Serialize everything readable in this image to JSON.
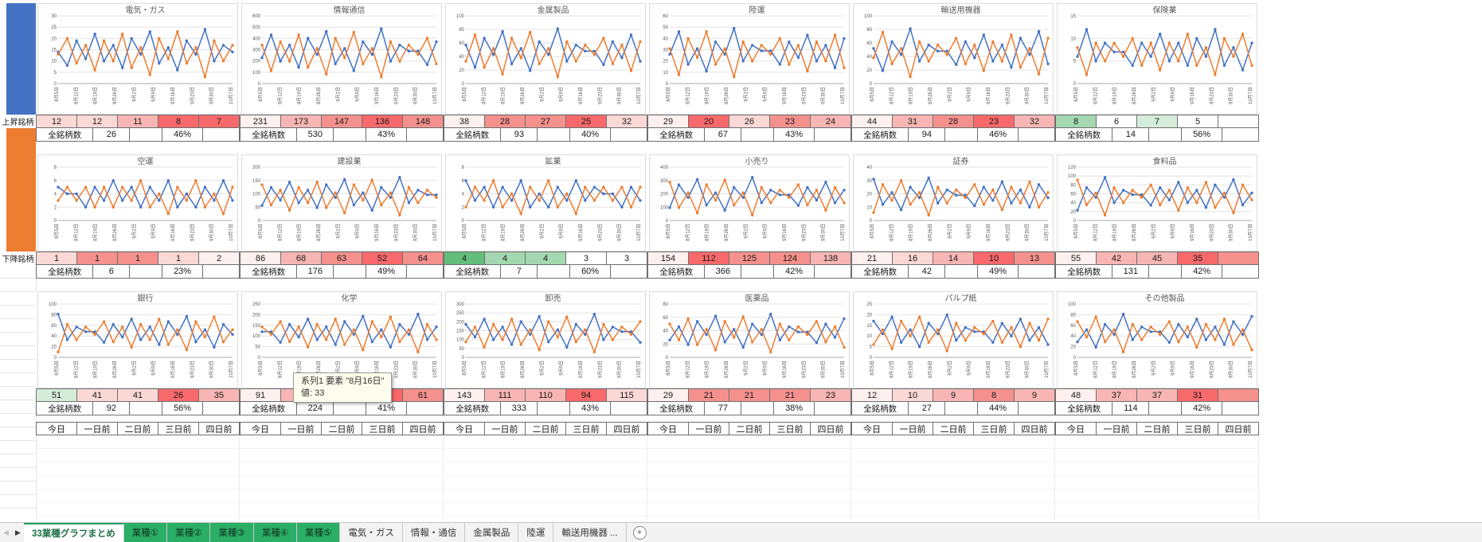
{
  "sidebar": {
    "rising_label": "上昇銘柄",
    "falling_label": "下降銘柄",
    "rising_color": "#4472C4",
    "falling_color": "#ED7D31"
  },
  "x_labels": [
    "8月5日",
    "8月12日",
    "8月19日",
    "8月26日",
    "9月2日",
    "9月9日",
    "9月16日",
    "9月23日",
    "9月30日",
    "10月7日"
  ],
  "time_labels": [
    "今日",
    "一日前",
    "二日前",
    "三日前",
    "四日前"
  ],
  "totals_label": "全銘柄数",
  "series_colors": {
    "s1": "#4472C4",
    "s2": "#ED7D31"
  },
  "tooltip": {
    "line1": "系列1 要素 \"8月16日\"",
    "line2": "値: 33"
  },
  "tabs": {
    "nav_left": "◀",
    "nav_right": "▶",
    "add_label": "+",
    "items": [
      {
        "label": "33業種グラフまとめ",
        "type": "active"
      },
      {
        "label": "業種①",
        "type": "green"
      },
      {
        "label": "業種②",
        "type": "green"
      },
      {
        "label": "業種③",
        "type": "green"
      },
      {
        "label": "業種④",
        "type": "green"
      },
      {
        "label": "業種⑤",
        "type": "green"
      },
      {
        "label": "電気・ガス",
        "type": "plain"
      },
      {
        "label": "情報・通信",
        "type": "plain"
      },
      {
        "label": "金属製品",
        "type": "plain"
      },
      {
        "label": "陸運",
        "type": "plain"
      },
      {
        "label": "輸送用機器 ...",
        "type": "plain"
      }
    ]
  },
  "charts": [
    {
      "title": "電気・ガス",
      "ymax": 30,
      "ystep": 5,
      "total": "26",
      "pct": "46%",
      "cells": [
        {
          "v": "12",
          "bg": "#FAD8D6"
        },
        {
          "v": "12",
          "bg": "#FAD8D6"
        },
        {
          "v": "11",
          "bg": "#F7B6B3"
        },
        {
          "v": "8",
          "bg": "#F8696B"
        },
        {
          "v": "7",
          "bg": "#F8696B"
        }
      ],
      "blue": [
        14,
        8,
        19,
        11,
        22,
        10,
        17,
        7,
        20,
        13,
        23,
        9,
        16,
        6,
        19,
        13,
        24,
        10,
        17,
        14
      ],
      "orange": [
        13,
        20,
        9,
        17,
        6,
        19,
        10,
        22,
        7,
        16,
        4,
        20,
        11,
        23,
        9,
        16,
        3,
        19,
        10,
        17
      ]
    },
    {
      "title": "情報通信",
      "ymax": 600,
      "ystep": 100,
      "total": "530",
      "pct": "43%",
      "cells": [
        {
          "v": "231",
          "bg": "#FDF0EF"
        },
        {
          "v": "173",
          "bg": "#F7B6B3"
        },
        {
          "v": "147",
          "bg": "#F4918D"
        },
        {
          "v": "136",
          "bg": "#F8696B"
        },
        {
          "v": "148",
          "bg": "#F4918D"
        }
      ],
      "blue": [
        228,
        432,
        198,
        342,
        144,
        402,
        258,
        462,
        174,
        312,
        114,
        372,
        258,
        486,
        198,
        342,
        288,
        288,
        168,
        372
      ],
      "orange": [
        342,
        114,
        372,
        198,
        432,
        144,
        312,
        84,
        402,
        228,
        456,
        174,
        312,
        60,
        372,
        198,
        342,
        258,
        402,
        174
      ]
    },
    {
      "title": "金属製品",
      "ymax": 100,
      "ystep": 20,
      "total": "93",
      "pct": "40%",
      "cells": [
        {
          "v": "38",
          "bg": "#FDF0EF"
        },
        {
          "v": "28",
          "bg": "#F4918D"
        },
        {
          "v": "27",
          "bg": "#F4918D"
        },
        {
          "v": "25",
          "bg": "#F8696B"
        },
        {
          "v": "32",
          "bg": "#FAD8D6"
        }
      ],
      "blue": [
        57,
        24,
        67,
        43,
        77,
        29,
        52,
        19,
        62,
        43,
        81,
        33,
        57,
        48,
        48,
        28,
        62,
        38,
        72,
        33
      ],
      "orange": [
        33,
        72,
        24,
        52,
        14,
        67,
        38,
        76,
        29,
        52,
        10,
        62,
        33,
        57,
        43,
        67,
        29,
        57,
        19,
        62
      ]
    },
    {
      "title": "陸運",
      "ymax": 60,
      "ystep": 10,
      "total": "67",
      "pct": "43%",
      "cells": [
        {
          "v": "29",
          "bg": "#FDF0EF"
        },
        {
          "v": "20",
          "bg": "#F8696B"
        },
        {
          "v": "26",
          "bg": "#FAD8D6"
        },
        {
          "v": "23",
          "bg": "#F4918D"
        },
        {
          "v": "24",
          "bg": "#F7B6B3"
        }
      ],
      "blue": [
        26,
        46,
        17,
        31,
        11,
        37,
        26,
        49,
        20,
        34,
        29,
        29,
        17,
        37,
        23,
        43,
        20,
        34,
        14,
        40
      ],
      "orange": [
        31,
        8,
        40,
        23,
        46,
        17,
        31,
        6,
        37,
        20,
        34,
        26,
        40,
        17,
        34,
        11,
        37,
        20,
        43,
        14
      ]
    },
    {
      "title": "輸送用機器",
      "ymax": 100,
      "ystep": 20,
      "total": "94",
      "pct": "46%",
      "cells": [
        {
          "v": "44",
          "bg": "#FDF0EF"
        },
        {
          "v": "31",
          "bg": "#F7B6B3"
        },
        {
          "v": "28",
          "bg": "#F4918D"
        },
        {
          "v": "23",
          "bg": "#F8696B"
        },
        {
          "v": "32",
          "bg": "#F7B6B3"
        }
      ],
      "blue": [
        52,
        19,
        62,
        43,
        81,
        33,
        57,
        48,
        48,
        28,
        62,
        38,
        72,
        33,
        57,
        24,
        67,
        43,
        77,
        29
      ],
      "orange": [
        38,
        76,
        29,
        52,
        10,
        62,
        33,
        57,
        43,
        67,
        29,
        57,
        19,
        62,
        33,
        72,
        24,
        52,
        14,
        67
      ]
    },
    {
      "title": "保険業",
      "ymax": 15,
      "ystep": 5,
      "total": "14",
      "pct": "56%",
      "cells": [
        {
          "v": "8",
          "bg": "#A4D8B0"
        },
        {
          "v": "6",
          "bg": "#FFFFFF"
        },
        {
          "v": "7",
          "bg": "#D5ECDB"
        },
        {
          "v": "5",
          "bg": "#FFFFFF"
        },
        {
          "v": "",
          "bg": "#FFFFFF"
        }
      ],
      "blue": [
        6,
        12,
        5,
        9,
        7,
        7,
        4,
        9,
        6,
        11,
        5,
        9,
        4,
        10,
        6,
        12,
        4,
        8,
        3,
        9
      ],
      "orange": [
        8,
        2,
        9,
        5,
        9,
        6,
        10,
        4,
        9,
        3,
        9,
        5,
        11,
        4,
        8,
        2,
        10,
        6,
        11,
        4
      ]
    },
    {
      "title": "空運",
      "ymax": 8,
      "ystep": 2,
      "total": "6",
      "pct": "23%",
      "cells": [
        {
          "v": "1",
          "bg": "#FAD8D6"
        },
        {
          "v": "1",
          "bg": "#F4918D"
        },
        {
          "v": "1",
          "bg": "#F4918D"
        },
        {
          "v": "1",
          "bg": "#FAD8D6"
        },
        {
          "v": "2",
          "bg": "#FDF0EF"
        }
      ],
      "blue": [
        5,
        4,
        4,
        2,
        5,
        3,
        6,
        3,
        5,
        2,
        5,
        3,
        6,
        2,
        4,
        2,
        5,
        3,
        6,
        3
      ],
      "orange": [
        3,
        5,
        3,
        5,
        2,
        5,
        2,
        5,
        3,
        6,
        2,
        4,
        1,
        5,
        3,
        6,
        2,
        4,
        1,
        5
      ]
    },
    {
      "title": "建設業",
      "ymax": 200,
      "ystep": 50,
      "total": "176",
      "pct": "49%",
      "cells": [
        {
          "v": "86",
          "bg": "#FDF0EF"
        },
        {
          "v": "68",
          "bg": "#F7B6B3"
        },
        {
          "v": "63",
          "bg": "#F4918D"
        },
        {
          "v": "52",
          "bg": "#F8696B"
        },
        {
          "v": "64",
          "bg": "#F4918D"
        }
      ],
      "blue": [
        56,
        124,
        76,
        144,
        66,
        114,
        48,
        134,
        86,
        154,
        58,
        104,
        38,
        124,
        86,
        162,
        66,
        114,
        96,
        96
      ],
      "orange": [
        134,
        58,
        114,
        38,
        124,
        66,
        144,
        48,
        104,
        28,
        134,
        76,
        152,
        58,
        104,
        20,
        124,
        66,
        114,
        86
      ]
    },
    {
      "title": "鉱業",
      "ymax": 8,
      "ystep": 2,
      "total": "7",
      "pct": "60%",
      "cells": [
        {
          "v": "4",
          "bg": "#63BE7B"
        },
        {
          "v": "4",
          "bg": "#A4D8B0"
        },
        {
          "v": "4",
          "bg": "#A4D8B0"
        },
        {
          "v": "3",
          "bg": "#FFFFFF"
        },
        {
          "v": "3",
          "bg": "#FFFFFF"
        }
      ],
      "blue": [
        6,
        3,
        5,
        2,
        5,
        3,
        6,
        2,
        4,
        2,
        5,
        3,
        6,
        3,
        5,
        4,
        4,
        2,
        5,
        3
      ],
      "orange": [
        2,
        5,
        3,
        6,
        2,
        4,
        1,
        5,
        3,
        6,
        2,
        4,
        1,
        5,
        3,
        5,
        3,
        5,
        2,
        5
      ]
    },
    {
      "title": "小売り",
      "ymax": 400,
      "ystep": 100,
      "total": "366",
      "pct": "42%",
      "cells": [
        {
          "v": "154",
          "bg": "#FDF0EF"
        },
        {
          "v": "112",
          "bg": "#F8696B"
        },
        {
          "v": "125",
          "bg": "#F4918D"
        },
        {
          "v": "124",
          "bg": "#F4918D"
        },
        {
          "v": "138",
          "bg": "#F7B6B3"
        }
      ],
      "blue": [
        96,
        268,
        172,
        308,
        116,
        208,
        76,
        248,
        172,
        324,
        132,
        228,
        192,
        192,
        112,
        248,
        152,
        288,
        132,
        228
      ],
      "orange": [
        288,
        96,
        208,
        56,
        268,
        152,
        304,
        116,
        208,
        40,
        248,
        132,
        228,
        172,
        268,
        116,
        228,
        76,
        248,
        132
      ]
    },
    {
      "title": "証券",
      "ymax": 40,
      "ystep": 10,
      "total": "42",
      "pct": "49%",
      "cells": [
        {
          "v": "21",
          "bg": "#FDF0EF"
        },
        {
          "v": "16",
          "bg": "#FAD8D6"
        },
        {
          "v": "14",
          "bg": "#F7B6B3"
        },
        {
          "v": "10",
          "bg": "#F8696B"
        },
        {
          "v": "13",
          "bg": "#F4918D"
        }
      ],
      "blue": [
        31,
        12,
        21,
        8,
        25,
        17,
        32,
        13,
        23,
        19,
        19,
        11,
        25,
        15,
        29,
        13,
        23,
        10,
        27,
        17
      ],
      "orange": [
        6,
        27,
        15,
        30,
        12,
        21,
        4,
        25,
        13,
        23,
        17,
        27,
        12,
        23,
        8,
        25,
        13,
        29,
        10,
        21
      ]
    },
    {
      "title": "食料品",
      "ymax": 120,
      "ystep": 20,
      "total": "131",
      "pct": "42%",
      "cells": [
        {
          "v": "55",
          "bg": "#FDF0EF"
        },
        {
          "v": "42",
          "bg": "#F7B6B3"
        },
        {
          "v": "45",
          "bg": "#F7B6B3"
        },
        {
          "v": "35",
          "bg": "#F8696B"
        },
        {
          "v": "",
          "bg": "#F4918D"
        }
      ],
      "blue": [
        23,
        74,
        52,
        97,
        40,
        68,
        58,
        58,
        34,
        74,
        46,
        86,
        40,
        68,
        29,
        80,
        52,
        92,
        35,
        62
      ],
      "orange": [
        91,
        35,
        62,
        12,
        74,
        40,
        68,
        52,
        80,
        35,
        68,
        23,
        74,
        40,
        86,
        29,
        62,
        17,
        80,
        46
      ]
    },
    {
      "title": "銀行",
      "ymax": 100,
      "ystep": 20,
      "total": "92",
      "pct": "56%",
      "cells": [
        {
          "v": "51",
          "bg": "#D5ECDB"
        },
        {
          "v": "41",
          "bg": "#FAD8D6"
        },
        {
          "v": "41",
          "bg": "#FAD8D6"
        },
        {
          "v": "26",
          "bg": "#F8696B"
        },
        {
          "v": "35",
          "bg": "#F7B6B3"
        }
      ],
      "blue": [
        81,
        33,
        57,
        48,
        48,
        28,
        62,
        38,
        72,
        33,
        57,
        24,
        67,
        43,
        77,
        29,
        52,
        19,
        62,
        43
      ],
      "orange": [
        10,
        62,
        33,
        57,
        43,
        67,
        29,
        57,
        19,
        62,
        33,
        72,
        24,
        52,
        14,
        67,
        38,
        76,
        29,
        52
      ]
    },
    {
      "title": "化学",
      "ymax": 250,
      "ystep": 50,
      "total": "224",
      "pct": "41%",
      "cells": [
        {
          "v": "91",
          "bg": "#FDF0EF"
        },
        {
          "v": "66",
          "bg": "#F7B6B3"
        },
        {
          "v": "68",
          "bg": "#F7B6B3"
        },
        {
          "v": "51",
          "bg": "#F8696B"
        },
        {
          "v": "61",
          "bg": "#F4918D"
        }
      ],
      "blue": [
        120,
        120,
        70,
        155,
        95,
        180,
        83,
        143,
        60,
        168,
        108,
        193,
        73,
        130,
        48,
        155,
        108,
        203,
        83,
        143
      ],
      "orange": [
        143,
        108,
        168,
        73,
        143,
        48,
        155,
        83,
        180,
        60,
        130,
        35,
        168,
        95,
        190,
        73,
        130,
        25,
        155,
        83
      ]
    },
    {
      "title": "卸売",
      "ymax": 300,
      "ystep": 50,
      "total": "333",
      "pct": "43%",
      "cells": [
        {
          "v": "143",
          "bg": "#FDF0EF"
        },
        {
          "v": "111",
          "bg": "#F7B6B3"
        },
        {
          "v": "110",
          "bg": "#F7B6B3"
        },
        {
          "v": "94",
          "bg": "#F8696B"
        },
        {
          "v": "115",
          "bg": "#FAD8D6"
        }
      ],
      "blue": [
        186,
        114,
        216,
        99,
        171,
        72,
        201,
        129,
        231,
        87,
        156,
        57,
        186,
        129,
        243,
        99,
        171,
        144,
        144,
        84
      ],
      "orange": [
        87,
        171,
        57,
        186,
        99,
        216,
        72,
        156,
        42,
        201,
        114,
        228,
        87,
        156,
        30,
        186,
        99,
        171,
        129,
        201
      ]
    },
    {
      "title": "医薬品",
      "ymax": 80,
      "ystep": 20,
      "total": "77",
      "pct": "38%",
      "cells": [
        {
          "v": "29",
          "bg": "#FDF0EF"
        },
        {
          "v": "21",
          "bg": "#F4918D"
        },
        {
          "v": "21",
          "bg": "#F4918D"
        },
        {
          "v": "21",
          "bg": "#F4918D"
        },
        {
          "v": "23",
          "bg": "#F7B6B3"
        }
      ],
      "blue": [
        26,
        46,
        19,
        54,
        34,
        62,
        23,
        42,
        15,
        50,
        34,
        65,
        26,
        46,
        38,
        38,
        22,
        50,
        30,
        58
      ],
      "orange": [
        50,
        26,
        58,
        19,
        42,
        11,
        54,
        30,
        61,
        23,
        42,
        8,
        50,
        26,
        46,
        34,
        54,
        23,
        46,
        15
      ]
    },
    {
      "title": "パルプ紙",
      "ymax": 25,
      "ystep": 5,
      "total": "27",
      "pct": "44%",
      "cells": [
        {
          "v": "12",
          "bg": "#FDF0EF"
        },
        {
          "v": "10",
          "bg": "#FAD8D6"
        },
        {
          "v": "9",
          "bg": "#F7B6B3"
        },
        {
          "v": "8",
          "bg": "#F4918D"
        },
        {
          "v": "9",
          "bg": "#F7B6B3"
        }
      ],
      "blue": [
        17,
        11,
        19,
        7,
        13,
        5,
        16,
        11,
        20,
        8,
        14,
        12,
        12,
        7,
        16,
        10,
        18,
        8,
        14,
        6
      ],
      "orange": [
        6,
        13,
        4,
        17,
        10,
        19,
        7,
        13,
        3,
        16,
        8,
        14,
        11,
        17,
        7,
        14,
        5,
        16,
        8,
        18
      ]
    },
    {
      "title": "その他製品",
      "ymax": 100,
      "ystep": 20,
      "total": "114",
      "pct": "42%",
      "cells": [
        {
          "v": "48",
          "bg": "#FDF0EF"
        },
        {
          "v": "37",
          "bg": "#F7B6B3"
        },
        {
          "v": "37",
          "bg": "#F7B6B3"
        },
        {
          "v": "31",
          "bg": "#F8696B"
        },
        {
          "v": "",
          "bg": "#F4918D"
        }
      ],
      "blue": [
        29,
        52,
        19,
        62,
        43,
        81,
        33,
        57,
        48,
        48,
        28,
        62,
        38,
        72,
        33,
        57,
        24,
        67,
        43,
        77
      ],
      "orange": [
        67,
        38,
        76,
        29,
        52,
        10,
        62,
        33,
        57,
        43,
        67,
        29,
        57,
        19,
        62,
        33,
        72,
        24,
        52,
        14
      ]
    }
  ]
}
